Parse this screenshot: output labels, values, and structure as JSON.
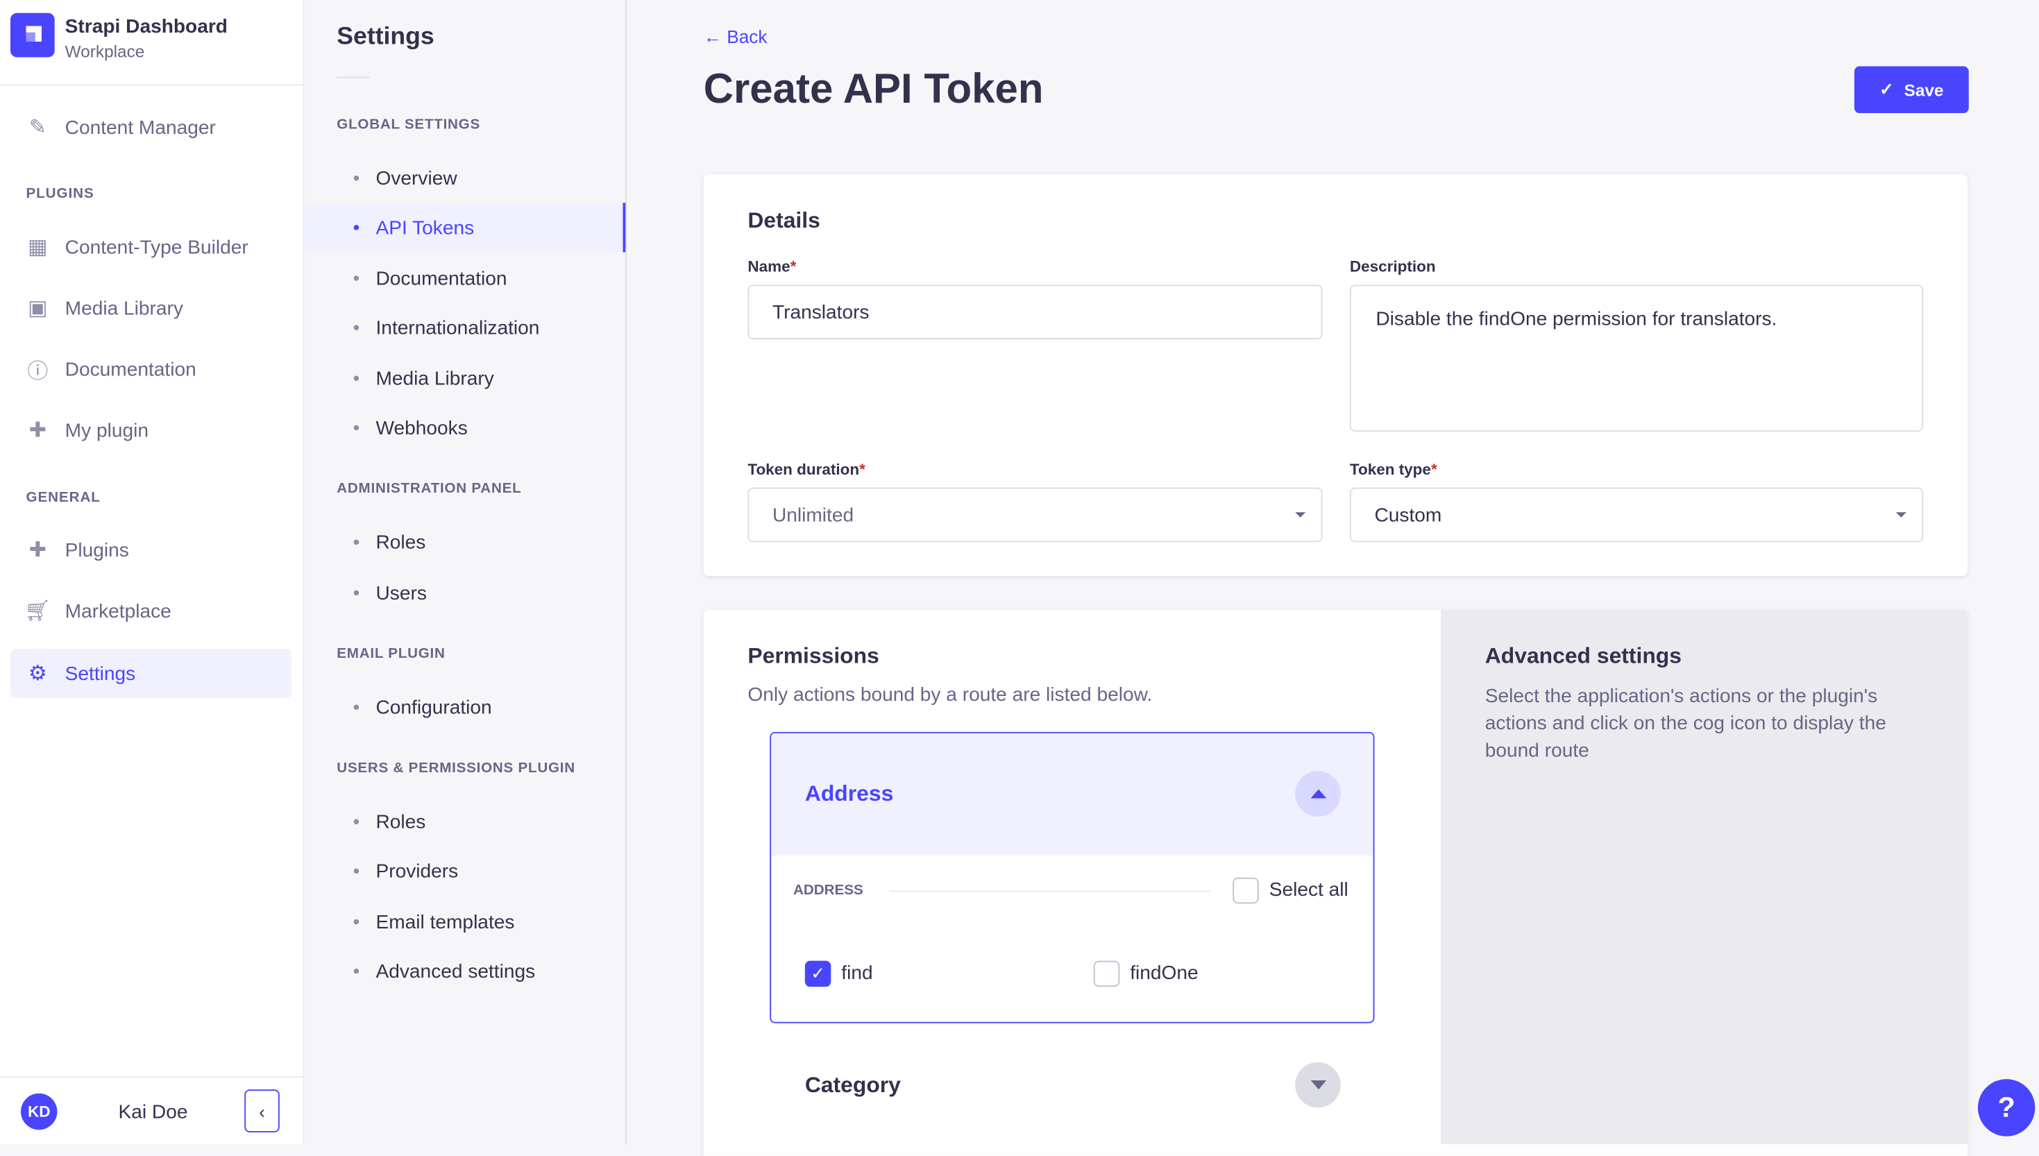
{
  "brand": {
    "title": "Strapi Dashboard",
    "subtitle": "Workplace"
  },
  "nav": {
    "content_manager": "Content Manager",
    "plugins_heading": "PLUGINS",
    "plugins": [
      "Content-Type Builder",
      "Media Library",
      "Documentation",
      "My plugin"
    ],
    "general_heading": "GENERAL",
    "general": [
      "Plugins",
      "Marketplace",
      "Settings"
    ],
    "active": "Settings"
  },
  "user": {
    "initials": "KD",
    "name": "Kai Doe"
  },
  "settings": {
    "title": "Settings",
    "sections": [
      {
        "heading": "GLOBAL SETTINGS",
        "items": [
          "Overview",
          "API Tokens",
          "Documentation",
          "Internationalization",
          "Media Library",
          "Webhooks"
        ]
      },
      {
        "heading": "ADMINISTRATION PANEL",
        "items": [
          "Roles",
          "Users"
        ]
      },
      {
        "heading": "EMAIL PLUGIN",
        "items": [
          "Configuration"
        ]
      },
      {
        "heading": "USERS & PERMISSIONS PLUGIN",
        "items": [
          "Roles",
          "Providers",
          "Email templates",
          "Advanced settings"
        ]
      }
    ],
    "active": "API Tokens"
  },
  "page": {
    "back": "Back",
    "title": "Create API Token",
    "save": "Save"
  },
  "details": {
    "title": "Details",
    "name_label": "Name",
    "name_value": "Translators",
    "description_label": "Description",
    "description_value": "Disable the findOne permission for translators.",
    "duration_label": "Token duration",
    "duration_value": "Unlimited",
    "type_label": "Token type",
    "type_value": "Custom",
    "required_mark": "*"
  },
  "permissions": {
    "title": "Permissions",
    "subtitle": "Only actions bound by a route are listed below.",
    "groups": [
      {
        "name": "Address",
        "expanded": true,
        "section": "ADDRESS",
        "select_all": "Select all",
        "select_all_checked": false,
        "actions": [
          {
            "label": "find",
            "checked": true
          },
          {
            "label": "findOne",
            "checked": false
          }
        ]
      },
      {
        "name": "Category",
        "expanded": false
      }
    ]
  },
  "advanced": {
    "title": "Advanced settings",
    "text": "Select the application's actions or the plugin's actions and click on the cog icon to display the bound route"
  },
  "colors": {
    "primary": "#4945ff",
    "text": "#32324d",
    "muted": "#666687",
    "required": "#d02b20"
  }
}
